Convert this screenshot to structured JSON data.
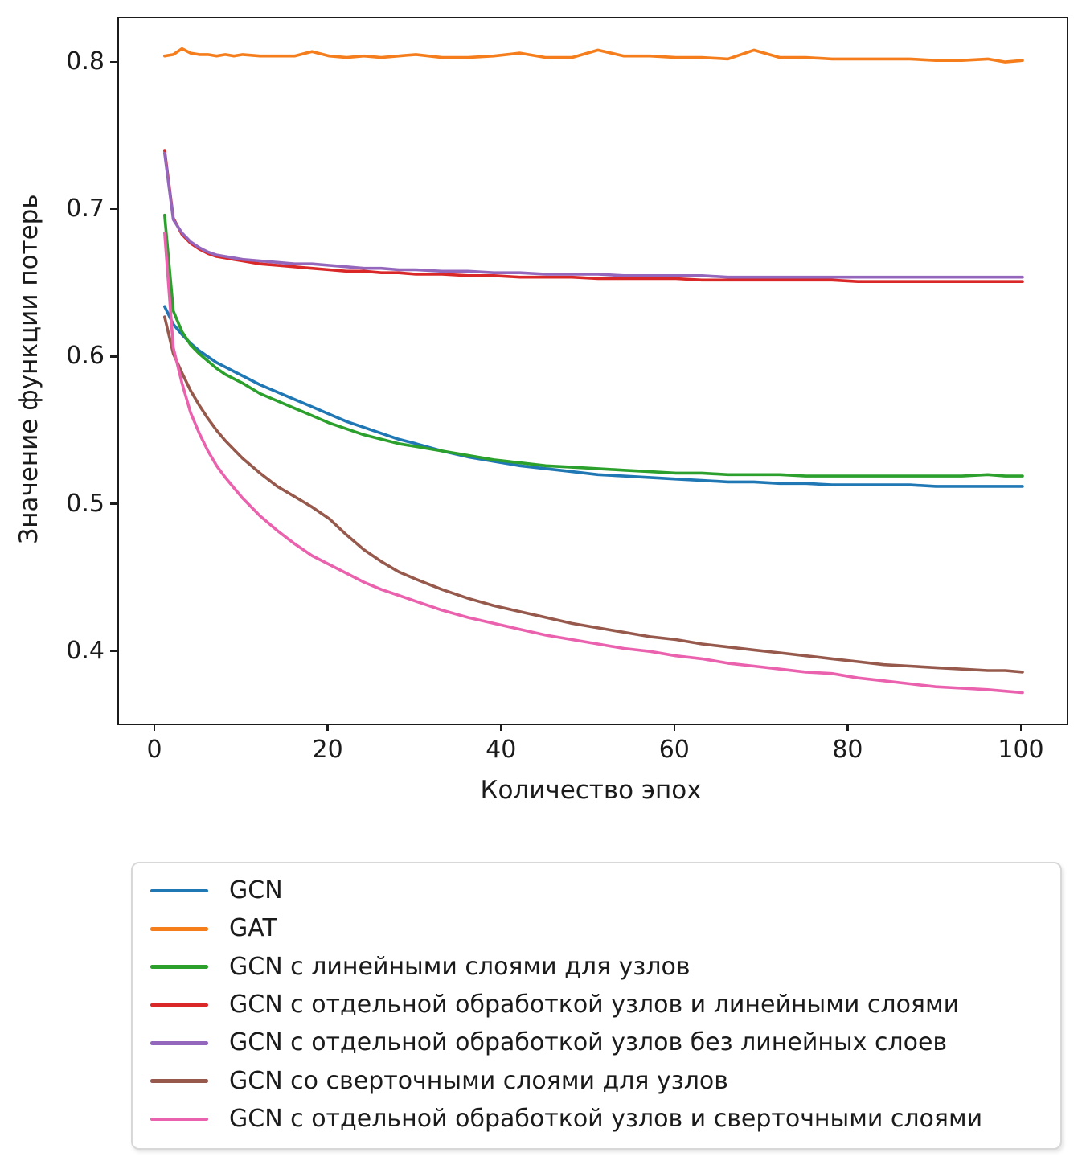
{
  "figure": {
    "xlabel": "Количество эпох",
    "ylabel": "Значение функции потерь",
    "text_color": "#1b1b1b",
    "spine_color": "#1b1b1b",
    "legend_border_color": "#d8d8d8",
    "background": "#ffffff"
  },
  "chart_data": {
    "type": "line",
    "title": "",
    "xlabel": "Количество эпох",
    "ylabel": "Значение функции потерь",
    "xlim": [
      -4.27,
      105.1
    ],
    "ylim": [
      0.352,
      0.8305
    ],
    "xticks": [
      0,
      20,
      40,
      60,
      80,
      100
    ],
    "xtick_labels": [
      "0",
      "20",
      "40",
      "60",
      "80",
      "100"
    ],
    "yticks": [
      0.4,
      0.5,
      0.6,
      0.7,
      0.8
    ],
    "ytick_labels": [
      "0.4",
      "0.5",
      "0.6",
      "0.7",
      "0.8"
    ],
    "grid": false,
    "legend_position": "below-plot",
    "x": [
      1,
      2,
      3,
      4,
      5,
      6,
      7,
      8,
      9,
      10,
      12,
      14,
      16,
      18,
      20,
      22,
      24,
      26,
      28,
      30,
      33,
      36,
      39,
      42,
      45,
      48,
      51,
      54,
      57,
      60,
      63,
      66,
      69,
      72,
      75,
      78,
      81,
      84,
      87,
      90,
      93,
      96,
      98,
      100
    ],
    "series": [
      {
        "name": "GCN",
        "color": "#1f77b4",
        "values": [
          0.635,
          0.623,
          0.616,
          0.61,
          0.605,
          0.601,
          0.597,
          0.594,
          0.591,
          0.588,
          0.582,
          0.577,
          0.572,
          0.567,
          0.562,
          0.557,
          0.553,
          0.549,
          0.545,
          0.542,
          0.537,
          0.533,
          0.53,
          0.527,
          0.525,
          0.523,
          0.521,
          0.52,
          0.519,
          0.518,
          0.517,
          0.516,
          0.516,
          0.515,
          0.515,
          0.514,
          0.514,
          0.514,
          0.514,
          0.513,
          0.513,
          0.513,
          0.513,
          0.513
        ]
      },
      {
        "name": "GAT",
        "color": "#f57d1b",
        "values": [
          0.805,
          0.806,
          0.81,
          0.807,
          0.806,
          0.806,
          0.805,
          0.806,
          0.805,
          0.806,
          0.805,
          0.805,
          0.805,
          0.808,
          0.805,
          0.804,
          0.805,
          0.804,
          0.805,
          0.806,
          0.804,
          0.804,
          0.805,
          0.807,
          0.804,
          0.804,
          0.809,
          0.805,
          0.805,
          0.804,
          0.804,
          0.803,
          0.809,
          0.804,
          0.804,
          0.803,
          0.803,
          0.803,
          0.803,
          0.802,
          0.802,
          0.803,
          0.801,
          0.802
        ]
      },
      {
        "name": "GCN с линейными слоями для узлов",
        "color": "#2ca02c",
        "values": [
          0.697,
          0.632,
          0.618,
          0.609,
          0.603,
          0.598,
          0.593,
          0.589,
          0.586,
          0.583,
          0.576,
          0.571,
          0.566,
          0.561,
          0.556,
          0.552,
          0.548,
          0.545,
          0.542,
          0.54,
          0.537,
          0.534,
          0.531,
          0.529,
          0.527,
          0.526,
          0.525,
          0.524,
          0.523,
          0.522,
          0.522,
          0.521,
          0.521,
          0.521,
          0.52,
          0.52,
          0.52,
          0.52,
          0.52,
          0.52,
          0.52,
          0.521,
          0.52,
          0.52
        ]
      },
      {
        "name": "GCN с отдельной обработкой узлов и линейными слоями",
        "color": "#da2828",
        "values": [
          0.741,
          0.695,
          0.684,
          0.678,
          0.674,
          0.671,
          0.669,
          0.668,
          0.667,
          0.666,
          0.664,
          0.663,
          0.662,
          0.661,
          0.66,
          0.659,
          0.659,
          0.658,
          0.658,
          0.657,
          0.657,
          0.656,
          0.656,
          0.655,
          0.655,
          0.655,
          0.654,
          0.654,
          0.654,
          0.654,
          0.653,
          0.653,
          0.653,
          0.653,
          0.653,
          0.653,
          0.652,
          0.652,
          0.652,
          0.652,
          0.652,
          0.652,
          0.652,
          0.652
        ]
      },
      {
        "name": "GCN с отдельной обработкой узлов без линейных слоев",
        "color": "#9467bd",
        "values": [
          0.739,
          0.694,
          0.685,
          0.679,
          0.675,
          0.672,
          0.67,
          0.669,
          0.668,
          0.667,
          0.666,
          0.665,
          0.664,
          0.664,
          0.663,
          0.662,
          0.661,
          0.661,
          0.66,
          0.66,
          0.659,
          0.659,
          0.658,
          0.658,
          0.657,
          0.657,
          0.657,
          0.656,
          0.656,
          0.656,
          0.656,
          0.655,
          0.655,
          0.655,
          0.655,
          0.655,
          0.655,
          0.655,
          0.655,
          0.655,
          0.655,
          0.655,
          0.655,
          0.655
        ]
      },
      {
        "name": "GCN со сверточными слоями для узлов",
        "color": "#96594c",
        "values": [
          0.628,
          0.603,
          0.59,
          0.578,
          0.568,
          0.559,
          0.551,
          0.544,
          0.538,
          0.532,
          0.522,
          0.513,
          0.506,
          0.499,
          0.491,
          0.48,
          0.47,
          0.462,
          0.455,
          0.45,
          0.443,
          0.437,
          0.432,
          0.428,
          0.424,
          0.42,
          0.417,
          0.414,
          0.411,
          0.409,
          0.406,
          0.404,
          0.402,
          0.4,
          0.398,
          0.396,
          0.394,
          0.392,
          0.391,
          0.39,
          0.389,
          0.388,
          0.388,
          0.387
        ]
      },
      {
        "name": "GCN с отдельной обработкой узлов и сверточными слоями",
        "color": "#ea61ae",
        "values": [
          0.685,
          0.607,
          0.583,
          0.563,
          0.549,
          0.537,
          0.527,
          0.519,
          0.512,
          0.505,
          0.493,
          0.483,
          0.474,
          0.466,
          0.46,
          0.454,
          0.448,
          0.443,
          0.439,
          0.435,
          0.429,
          0.424,
          0.42,
          0.416,
          0.412,
          0.409,
          0.406,
          0.403,
          0.401,
          0.398,
          0.396,
          0.393,
          0.391,
          0.389,
          0.387,
          0.386,
          0.383,
          0.381,
          0.379,
          0.377,
          0.376,
          0.375,
          0.374,
          0.373
        ]
      }
    ]
  }
}
